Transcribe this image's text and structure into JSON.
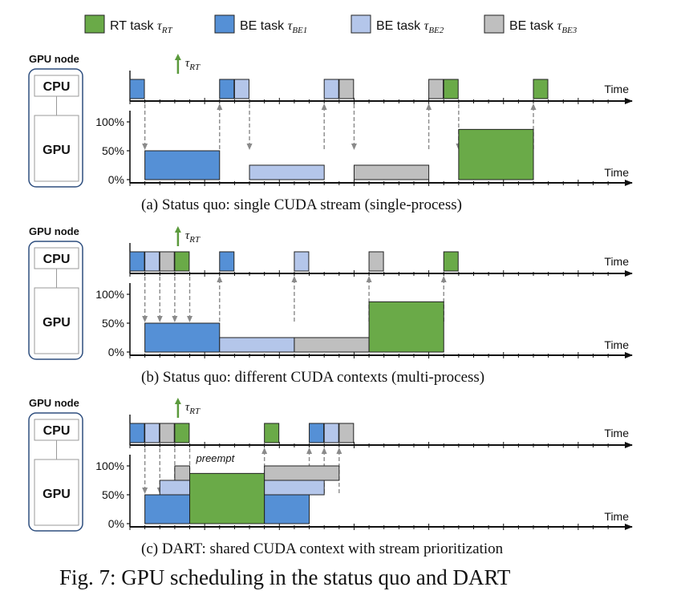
{
  "legend": {
    "items": [
      {
        "label": "RT task ",
        "math": "τ",
        "sub": "RT",
        "color": "#6aaa48"
      },
      {
        "label": "BE task ",
        "math": "τ",
        "sub": "BE1",
        "color": "#5590d6"
      },
      {
        "label": "BE task ",
        "math": "τ",
        "sub": "BE2",
        "color": "#b4c6ea"
      },
      {
        "label": "BE task ",
        "math": "τ",
        "sub": "BE3",
        "color": "#bfbfbf"
      }
    ]
  },
  "labels": {
    "gpu_node": "GPU node",
    "cpu": "CPU",
    "gpu": "GPU",
    "time": "Time",
    "pct_100": "100%",
    "pct_50": "50%",
    "pct_0": "0%",
    "tau": "τ",
    "tau_sub": "RT",
    "preempt": "preempt"
  },
  "panels": [
    {
      "id": "a",
      "caption": "(a) Status quo: single CUDA stream (single-process)",
      "cpu_blocks": [
        {
          "start": 0,
          "task": "BE1"
        },
        {
          "start": 6,
          "task": "BE1"
        },
        {
          "start": 7,
          "task": "BE2"
        },
        {
          "start": 13,
          "task": "BE2"
        },
        {
          "start": 14,
          "task": "BE3"
        },
        {
          "start": 20,
          "task": "BE3"
        },
        {
          "start": 21,
          "task": "RT"
        },
        {
          "start": 27,
          "task": "RT"
        }
      ],
      "gpu_blocks": [
        {
          "start": 1,
          "end": 6,
          "level": 0,
          "util": 50,
          "task": "BE1"
        },
        {
          "start": 8,
          "end": 13,
          "level": 0,
          "util": 25,
          "task": "BE2"
        },
        {
          "start": 15,
          "end": 20,
          "level": 0,
          "util": 25,
          "task": "BE3"
        },
        {
          "start": 22,
          "end": 27,
          "level": 0,
          "util": 87,
          "task": "RT"
        }
      ],
      "arrows": [
        {
          "from": "cpu",
          "to": "gpu",
          "x": 1
        },
        {
          "from": "gpu",
          "to": "cpu",
          "x": 6
        },
        {
          "from": "cpu",
          "to": "gpu",
          "x": 8
        },
        {
          "from": "gpu",
          "to": "cpu",
          "x": 13
        },
        {
          "from": "cpu",
          "to": "gpu",
          "x": 15
        },
        {
          "from": "gpu",
          "to": "cpu",
          "x": 20
        },
        {
          "from": "cpu",
          "to": "gpu",
          "x": 22
        },
        {
          "from": "gpu",
          "to": "cpu",
          "x": 27
        }
      ],
      "tau_at": 3
    },
    {
      "id": "b",
      "caption": "(b) Status quo: different CUDA contexts (multi-process)",
      "cpu_blocks": [
        {
          "start": 0,
          "task": "BE1"
        },
        {
          "start": 1,
          "task": "BE2"
        },
        {
          "start": 2,
          "task": "BE3"
        },
        {
          "start": 3,
          "task": "RT"
        },
        {
          "start": 6,
          "task": "BE1"
        },
        {
          "start": 11,
          "task": "BE2"
        },
        {
          "start": 16,
          "task": "BE3"
        },
        {
          "start": 21,
          "task": "RT"
        }
      ],
      "gpu_blocks": [
        {
          "start": 1,
          "end": 6,
          "level": 0,
          "util": 50,
          "task": "BE1"
        },
        {
          "start": 6,
          "end": 11,
          "level": 0,
          "util": 25,
          "task": "BE2"
        },
        {
          "start": 11,
          "end": 16,
          "level": 0,
          "util": 25,
          "task": "BE3"
        },
        {
          "start": 16,
          "end": 21,
          "level": 0,
          "util": 87,
          "task": "RT"
        }
      ],
      "arrows": [
        {
          "from": "cpu",
          "to": "gpu",
          "x": 1
        },
        {
          "from": "cpu",
          "to": "gpu",
          "x": 2
        },
        {
          "from": "cpu",
          "to": "gpu",
          "x": 3
        },
        {
          "from": "cpu",
          "to": "gpu",
          "x": 4
        },
        {
          "from": "gpu",
          "to": "cpu",
          "x": 6
        },
        {
          "from": "gpu",
          "to": "cpu",
          "x": 11
        },
        {
          "from": "gpu",
          "to": "cpu",
          "x": 16
        },
        {
          "from": "gpu",
          "to": "cpu",
          "x": 21
        }
      ],
      "tau_at": 3
    },
    {
      "id": "c",
      "caption": "(c) DART: shared CUDA context with stream prioritization",
      "cpu_blocks": [
        {
          "start": 0,
          "task": "BE1"
        },
        {
          "start": 1,
          "task": "BE2"
        },
        {
          "start": 2,
          "task": "BE3"
        },
        {
          "start": 3,
          "task": "RT"
        },
        {
          "start": 9,
          "task": "RT"
        },
        {
          "start": 12,
          "task": "BE1"
        },
        {
          "start": 13,
          "task": "BE2"
        },
        {
          "start": 14,
          "task": "BE3"
        }
      ],
      "gpu_blocks": [
        {
          "start": 1,
          "end": 4,
          "level": 0,
          "util": 50,
          "task": "BE1"
        },
        {
          "start": 2,
          "end": 4,
          "level": 50,
          "util": 25,
          "task": "BE2"
        },
        {
          "start": 3,
          "end": 4,
          "level": 75,
          "util": 25,
          "task": "BE3"
        },
        {
          "start": 4,
          "end": 9,
          "level": 0,
          "util": 87,
          "task": "RT"
        },
        {
          "start": 9,
          "end": 12,
          "level": 0,
          "util": 50,
          "task": "BE1"
        },
        {
          "start": 9,
          "end": 13,
          "level": 50,
          "util": 25,
          "task": "BE2"
        },
        {
          "start": 9,
          "end": 14,
          "level": 75,
          "util": 25,
          "task": "BE3"
        }
      ],
      "arrows": [
        {
          "from": "cpu",
          "to": "gpu",
          "x": 1
        },
        {
          "from": "cpu",
          "to": "gpu",
          "x": 2
        },
        {
          "from": "cpu",
          "to": "gpu",
          "x": 3
        },
        {
          "from": "cpu",
          "to": "gpu",
          "x": 4
        },
        {
          "from": "gpu",
          "to": "cpu",
          "x": 9
        },
        {
          "from": "gpu",
          "to": "cpu",
          "x": 12
        },
        {
          "from": "gpu",
          "to": "cpu",
          "x": 13
        },
        {
          "from": "gpu",
          "to": "cpu",
          "x": 14
        }
      ],
      "tau_at": 3,
      "preempt_at": 4
    }
  ],
  "figure_caption": "Fig. 7: GPU scheduling in the status quo and DART"
}
